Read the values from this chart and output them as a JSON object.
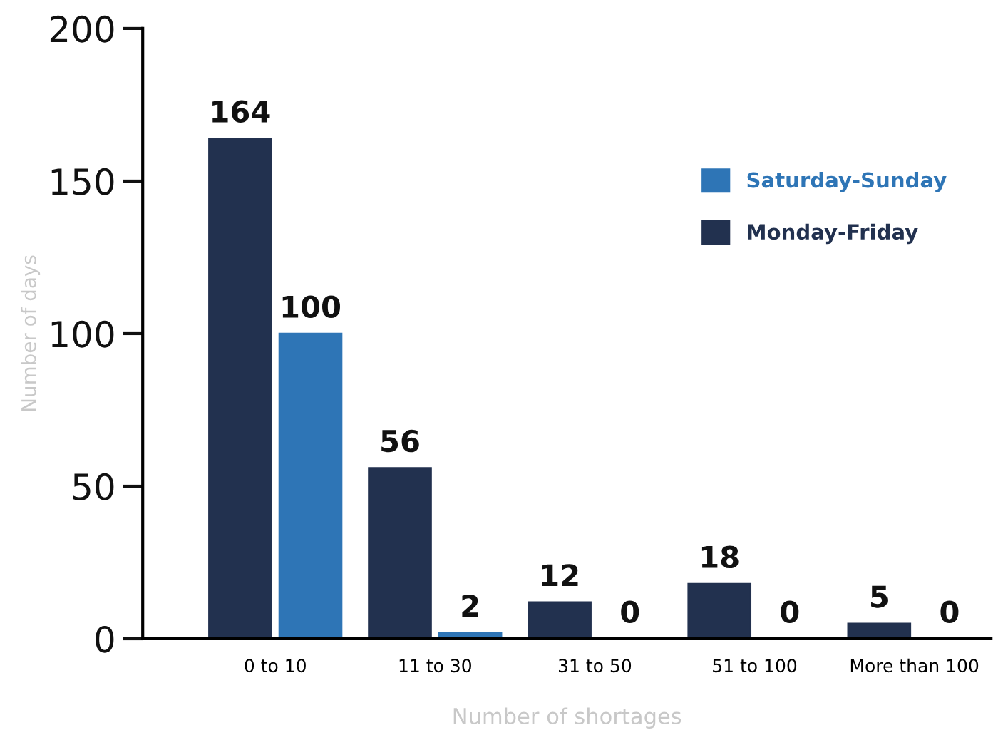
{
  "chart_data": {
    "type": "bar",
    "xlabel": "Number of shortages",
    "ylabel": "Number of days",
    "categories": [
      "0 to 10",
      "11 to 30",
      "31 to 50",
      "51 to 100",
      "More than 100"
    ],
    "series": [
      {
        "name": "Monday-Friday",
        "color": "#22314f",
        "values": [
          164,
          56,
          12,
          18,
          5
        ]
      },
      {
        "name": "Saturday-Sunday",
        "color": "#2e75b6",
        "values": [
          100,
          2,
          0,
          0,
          0
        ]
      }
    ],
    "ylim": [
      0,
      200
    ],
    "yticks": [
      0,
      50,
      100,
      150,
      200
    ],
    "data_labels": true,
    "legend": "top right",
    "grid": false
  }
}
